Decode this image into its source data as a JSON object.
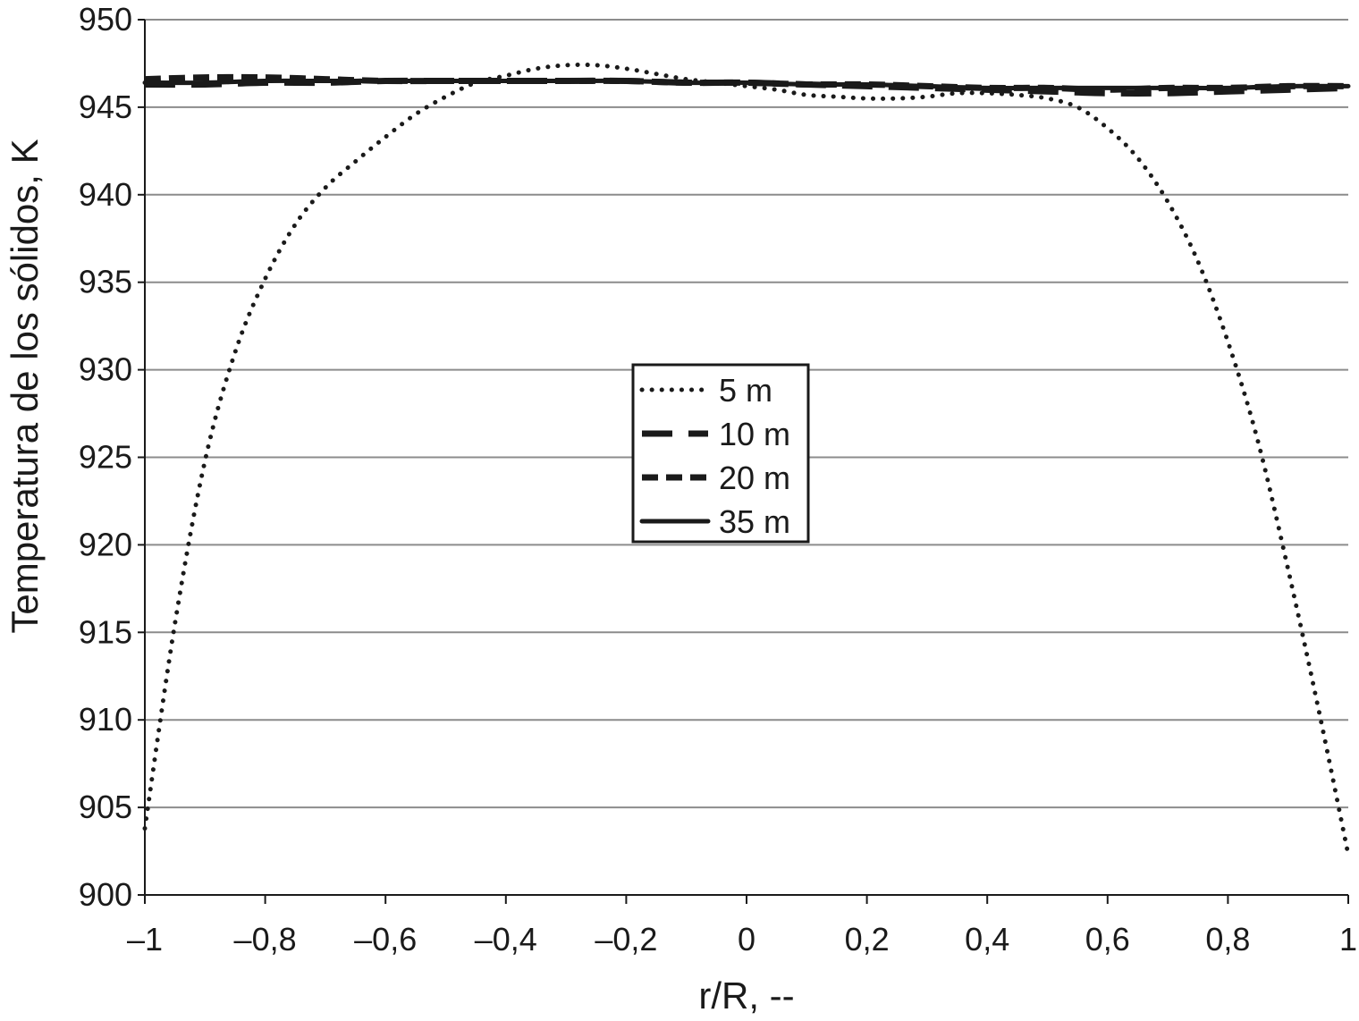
{
  "chart_data": {
    "type": "line",
    "xlabel": "r/R, --",
    "ylabel": "Temperatura de los sólidos, K",
    "xlim": [
      -1,
      1
    ],
    "ylim": [
      900,
      950
    ],
    "x_ticks": [
      -1,
      -0.8,
      -0.6,
      -0.4,
      -0.2,
      0,
      0.2,
      0.4,
      0.6,
      0.8,
      1
    ],
    "x_tick_labels": [
      "–1",
      "–0,8",
      "–0,6",
      "–0,4",
      "–0,2",
      "0",
      "0,2",
      "0,4",
      "0,6",
      "0,8",
      "1"
    ],
    "y_ticks": [
      900,
      905,
      910,
      915,
      920,
      925,
      930,
      935,
      940,
      945,
      950
    ],
    "y_tick_labels": [
      "900",
      "905",
      "910",
      "915",
      "920",
      "925",
      "930",
      "935",
      "940",
      "945",
      "950"
    ],
    "grid": "horizontal",
    "legend_position": "center",
    "series": [
      {
        "name": "5 m",
        "style": "dotted",
        "x": [
          -1,
          -0.95,
          -0.9,
          -0.85,
          -0.8,
          -0.75,
          -0.7,
          -0.65,
          -0.6,
          -0.55,
          -0.5,
          -0.45,
          -0.4,
          -0.35,
          -0.3,
          -0.25,
          -0.2,
          -0.15,
          -0.1,
          -0.05,
          0,
          0.05,
          0.1,
          0.15,
          0.2,
          0.25,
          0.3,
          0.35,
          0.4,
          0.45,
          0.5,
          0.55,
          0.6,
          0.65,
          0.7,
          0.75,
          0.8,
          0.85,
          0.9,
          0.95,
          1
        ],
        "y": [
          903.8,
          915.5,
          924.8,
          931.0,
          935.2,
          938.3,
          940.4,
          941.9,
          943.3,
          944.6,
          945.6,
          946.4,
          946.8,
          947.2,
          947.4,
          947.4,
          947.2,
          946.9,
          946.6,
          946.4,
          946.2,
          946.0,
          945.7,
          945.6,
          945.5,
          945.5,
          945.6,
          945.8,
          945.8,
          945.7,
          945.5,
          945.0,
          943.8,
          942.1,
          939.6,
          936.2,
          931.6,
          925.9,
          918.6,
          910.7,
          902.3
        ]
      },
      {
        "name": "10 m",
        "style": "long-dash",
        "x": [
          -1,
          -0.9,
          -0.8,
          -0.7,
          -0.6,
          -0.5,
          -0.4,
          -0.3,
          -0.2,
          -0.1,
          0,
          0.1,
          0.2,
          0.3,
          0.4,
          0.5,
          0.6,
          0.7,
          0.8,
          0.9,
          1
        ],
        "y": [
          946.3,
          946.3,
          946.4,
          946.4,
          946.5,
          946.5,
          946.5,
          946.5,
          946.5,
          946.4,
          946.4,
          946.3,
          946.2,
          946.1,
          946.0,
          945.9,
          945.8,
          945.8,
          945.9,
          946.0,
          946.1
        ]
      },
      {
        "name": "20 m",
        "style": "dashed",
        "x": [
          -1,
          -0.9,
          -0.8,
          -0.7,
          -0.6,
          -0.5,
          -0.4,
          -0.3,
          -0.2,
          -0.1,
          0,
          0.1,
          0.2,
          0.3,
          0.4,
          0.5,
          0.6,
          0.7,
          0.8,
          0.9,
          1
        ],
        "y": [
          946.6,
          946.7,
          946.7,
          946.6,
          946.5,
          946.5,
          946.5,
          946.5,
          946.5,
          946.4,
          946.4,
          946.3,
          946.3,
          946.2,
          946.1,
          946.1,
          946.0,
          946.1,
          946.1,
          946.2,
          946.2
        ]
      },
      {
        "name": "35 m",
        "style": "solid",
        "x": [
          -1,
          -0.9,
          -0.8,
          -0.7,
          -0.6,
          -0.5,
          -0.4,
          -0.3,
          -0.2,
          -0.1,
          0,
          0.1,
          0.2,
          0.3,
          0.4,
          0.5,
          0.6,
          0.7,
          0.8,
          0.9,
          1
        ],
        "y": [
          946.4,
          946.4,
          946.5,
          946.5,
          946.5,
          946.5,
          946.5,
          946.5,
          946.5,
          946.4,
          946.4,
          946.3,
          946.3,
          946.2,
          946.1,
          946.1,
          946.1,
          946.1,
          946.1,
          946.2,
          946.2
        ]
      }
    ]
  }
}
